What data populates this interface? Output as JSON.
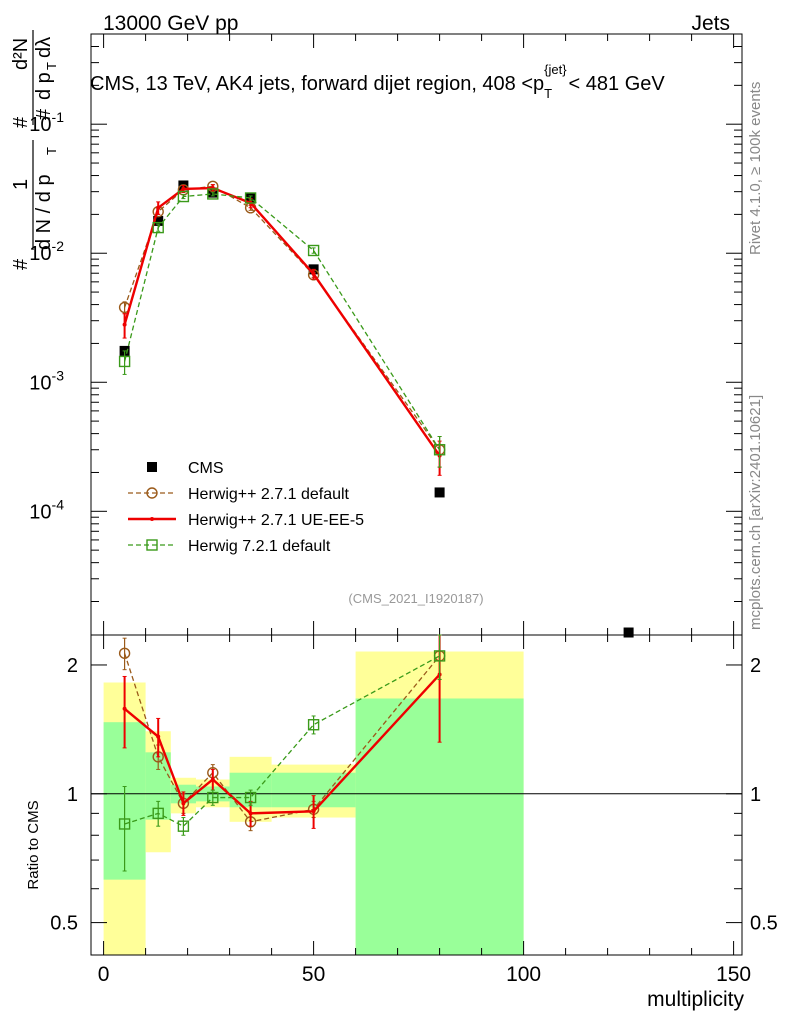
{
  "header": {
    "energy_label": "13000 GeV pp",
    "category_label": "Jets",
    "title_main": "CMS, 13 TeV, AK4 jets, forward dijet region, 408 <p",
    "title_sub": "T",
    "title_sup": "{jet}",
    "title_end": "< 481 GeV"
  },
  "side_labels": {
    "rivet": "Rivet 4.1.0, ≥ 100k events",
    "mcplots": "mcplots.cern.ch [arXiv:2401.10621]"
  },
  "analysis_tag": "(CMS_2021_I1920187)",
  "legend": [
    {
      "label": "CMS",
      "style": "data"
    },
    {
      "label": "Herwig++ 2.7.1 default",
      "style": "brown"
    },
    {
      "label": "Herwig++ 2.7.1 UE-EE-5",
      "style": "red"
    },
    {
      "label": "Herwig 7.2.1 default",
      "style": "green"
    }
  ],
  "colors": {
    "data": "#000000",
    "brown": "#9a5a1a",
    "red": "#ee0000",
    "green": "#3a9a1a",
    "band_yellow": "#ffff99",
    "band_green": "#99ff99"
  },
  "chart_data": [
    {
      "type": "scatter",
      "panel": "main",
      "ylabel": "1/(dN/dpT) d²N/dpT dλ",
      "yscale": "log",
      "ylim": [
        1.1e-05,
        0.5
      ],
      "xlim": [
        -3,
        152
      ],
      "y_tick_labels": [
        "10^-4",
        "10^-3",
        "10^-2",
        "10^-1"
      ],
      "series": [
        {
          "name": "CMS",
          "style": "data",
          "points": [
            {
              "x": 5,
              "y": 0.00175
            },
            {
              "x": 13,
              "y": 0.0178
            },
            {
              "x": 19,
              "y": 0.0335
            },
            {
              "x": 26,
              "y": 0.0295
            },
            {
              "x": 35,
              "y": 0.027
            },
            {
              "x": 50,
              "y": 0.0075
            },
            {
              "x": 80,
              "y": 0.00014
            },
            {
              "x": 125,
              "y": 1.15e-05
            }
          ]
        },
        {
          "name": "Herwig++ 2.7.1 default",
          "style": "brown",
          "points": [
            {
              "x": 5,
              "y": 0.0038,
              "err": 0.0004
            },
            {
              "x": 13,
              "y": 0.021,
              "err": 0.001
            },
            {
              "x": 19,
              "y": 0.031,
              "err": 0.001
            },
            {
              "x": 26,
              "y": 0.033,
              "err": 0.001
            },
            {
              "x": 35,
              "y": 0.0225,
              "err": 0.001
            },
            {
              "x": 50,
              "y": 0.0068,
              "err": 0.0003
            },
            {
              "x": 80,
              "y": 0.0003,
              "err": 8e-05
            }
          ]
        },
        {
          "name": "Herwig++ 2.7.1 UE-EE-5",
          "style": "red",
          "points": [
            {
              "x": 5,
              "y": 0.0028,
              "err": 0.0006
            },
            {
              "x": 13,
              "y": 0.0225,
              "err": 0.0025
            },
            {
              "x": 19,
              "y": 0.0315,
              "err": 0.002
            },
            {
              "x": 26,
              "y": 0.032,
              "err": 0.002
            },
            {
              "x": 35,
              "y": 0.0245,
              "err": 0.002
            },
            {
              "x": 50,
              "y": 0.0069,
              "err": 0.0006
            },
            {
              "x": 80,
              "y": 0.00027,
              "err": 8e-05
            }
          ]
        },
        {
          "name": "Herwig 7.2.1 default",
          "style": "green",
          "points": [
            {
              "x": 5,
              "y": 0.00145,
              "err": 0.0003
            },
            {
              "x": 13,
              "y": 0.0158,
              "err": 0.001
            },
            {
              "x": 19,
              "y": 0.0275,
              "err": 0.001
            },
            {
              "x": 26,
              "y": 0.0288,
              "err": 0.001
            },
            {
              "x": 35,
              "y": 0.0268,
              "err": 0.001
            },
            {
              "x": 50,
              "y": 0.0105,
              "err": 0.0005
            },
            {
              "x": 80,
              "y": 0.0003,
              "err": 8e-05
            }
          ]
        }
      ]
    },
    {
      "type": "scatter",
      "panel": "ratio",
      "ylabel": "Ratio to CMS",
      "xlabel": "multiplicity",
      "yscale": "log",
      "ylim": [
        0.42,
        2.35
      ],
      "xlim": [
        -3,
        152
      ],
      "x_ticks": [
        0,
        50,
        100,
        150
      ],
      "y_ticks": [
        0.5,
        1,
        2
      ],
      "bands": [
        {
          "x0": 0,
          "x1": 10,
          "y_inner": [
            0.63,
            1.47
          ],
          "y_outer": [
            0.4,
            1.82
          ]
        },
        {
          "x0": 10,
          "x1": 16,
          "y_inner": [
            0.87,
            1.25
          ],
          "y_outer": [
            0.73,
            1.4
          ]
        },
        {
          "x0": 16,
          "x1": 22,
          "y_inner": [
            0.95,
            1.05
          ],
          "y_outer": [
            0.9,
            1.09
          ]
        },
        {
          "x0": 22,
          "x1": 30,
          "y_inner": [
            0.96,
            1.04
          ],
          "y_outer": [
            0.93,
            1.08
          ]
        },
        {
          "x0": 30,
          "x1": 40,
          "y_inner": [
            0.93,
            1.12
          ],
          "y_outer": [
            0.86,
            1.22
          ]
        },
        {
          "x0": 40,
          "x1": 60,
          "y_inner": [
            0.93,
            1.12
          ],
          "y_outer": [
            0.88,
            1.17
          ]
        },
        {
          "x0": 60,
          "x1": 100,
          "y_inner": [
            0.4,
            1.67
          ],
          "y_outer": [
            0.4,
            2.15
          ]
        }
      ],
      "series": [
        {
          "name": "Herwig++ 2.7.1 default",
          "style": "brown",
          "points": [
            {
              "x": 5,
              "y": 2.13,
              "err": 0.18
            },
            {
              "x": 13,
              "y": 1.22,
              "err": 0.08
            },
            {
              "x": 19,
              "y": 0.95,
              "err": 0.05
            },
            {
              "x": 26,
              "y": 1.12,
              "err": 0.05
            },
            {
              "x": 35,
              "y": 0.86,
              "err": 0.04
            },
            {
              "x": 50,
              "y": 0.92,
              "err": 0.04
            },
            {
              "x": 80,
              "y": 2.1,
              "err": 0.25
            }
          ]
        },
        {
          "name": "Herwig++ 2.7.1 UE-EE-5",
          "style": "red",
          "points": [
            {
              "x": 5,
              "y": 1.58,
              "err": 0.3
            },
            {
              "x": 13,
              "y": 1.36,
              "err": 0.14
            },
            {
              "x": 19,
              "y": 0.95,
              "err": 0.06
            },
            {
              "x": 26,
              "y": 1.08,
              "err": 0.06
            },
            {
              "x": 35,
              "y": 0.9,
              "err": 0.06
            },
            {
              "x": 50,
              "y": 0.91,
              "err": 0.08
            },
            {
              "x": 80,
              "y": 1.9,
              "err": 0.58
            }
          ]
        },
        {
          "name": "Herwig 7.2.1 default",
          "style": "green",
          "points": [
            {
              "x": 5,
              "y": 0.85,
              "err": 0.19
            },
            {
              "x": 13,
              "y": 0.9,
              "err": 0.06
            },
            {
              "x": 19,
              "y": 0.84,
              "err": 0.04
            },
            {
              "x": 26,
              "y": 0.98,
              "err": 0.04
            },
            {
              "x": 35,
              "y": 0.98,
              "err": 0.04
            },
            {
              "x": 50,
              "y": 1.45,
              "err": 0.07
            },
            {
              "x": 80,
              "y": 2.1,
              "err": 0.25
            }
          ]
        }
      ]
    }
  ]
}
